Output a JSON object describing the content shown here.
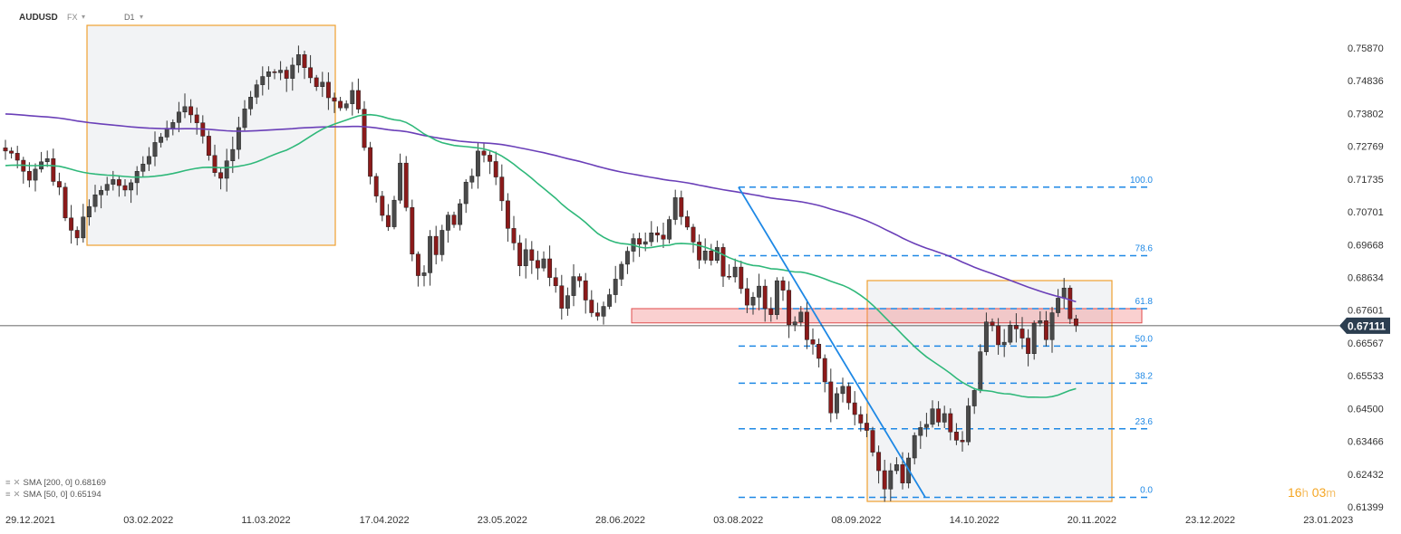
{
  "header": {
    "symbol": "AUDUSD",
    "market": "FX",
    "timeframe": "D1"
  },
  "indicators": [
    {
      "label": "SMA  [200,  0]",
      "value": "0.68169",
      "color": "#6a3fb8"
    },
    {
      "label": "SMA  [50,  0]",
      "value": "0.65194",
      "color": "#2fb87a"
    }
  ],
  "countdown": {
    "hours": "16",
    "hours_unit": "h",
    "minutes": "03",
    "minutes_unit": "m"
  },
  "colors": {
    "up": "#4a4a4a",
    "down": "#8b1a1a",
    "sma200": "#6a3fb8",
    "sma50": "#2fb87a",
    "fib": "#1e88e5",
    "box": "#f0a030",
    "zone": "#e04b4b",
    "price_tag": "#2c3e50"
  },
  "chart_data": {
    "type": "candlestick",
    "symbol": "AUDUSD",
    "timeframe": "D1",
    "x_tick_labels": [
      "29.12.2021",
      "03.02.2022",
      "11.03.2022",
      "17.04.2022",
      "23.05.2022",
      "28.06.2022",
      "03.08.2022",
      "08.09.2022",
      "14.10.2022",
      "20.11.2022",
      "23.12.2022",
      "23.01.2023"
    ],
    "y_tick_labels": [
      "0.75870",
      "0.74836",
      "0.73802",
      "0.72769",
      "0.71735",
      "0.70701",
      "0.69668",
      "0.68634",
      "0.67601",
      "0.66567",
      "0.65533",
      "0.64500",
      "0.63466",
      "0.62432",
      "0.61399"
    ],
    "ylim": [
      0.6133,
      0.762
    ],
    "current_price": "0.67111",
    "closes": [
      0.7262,
      0.7255,
      0.7233,
      0.7198,
      0.717,
      0.7205,
      0.7228,
      0.7238,
      0.7166,
      0.7148,
      0.7051,
      0.7012,
      0.6988,
      0.7054,
      0.7087,
      0.7124,
      0.7138,
      0.7157,
      0.7172,
      0.7153,
      0.7139,
      0.7162,
      0.7198,
      0.7221,
      0.7245,
      0.7289,
      0.7306,
      0.7334,
      0.7352,
      0.7385,
      0.7402,
      0.7376,
      0.7351,
      0.7309,
      0.7248,
      0.7194,
      0.7176,
      0.7231,
      0.7267,
      0.7336,
      0.7395,
      0.7432,
      0.7471,
      0.7497,
      0.7512,
      0.7509,
      0.7517,
      0.7491,
      0.7533,
      0.7566,
      0.7525,
      0.7493,
      0.7465,
      0.7479,
      0.743,
      0.7419,
      0.7398,
      0.7411,
      0.7453,
      0.7394,
      0.7273,
      0.7182,
      0.712,
      0.7059,
      0.7023,
      0.7107,
      0.7224,
      0.7084,
      0.6937,
      0.6869,
      0.6878,
      0.6993,
      0.6935,
      0.7012,
      0.706,
      0.703,
      0.7096,
      0.7164,
      0.7183,
      0.7262,
      0.7249,
      0.7229,
      0.718,
      0.7105,
      0.7018,
      0.6972,
      0.69,
      0.6951,
      0.6917,
      0.6893,
      0.6922,
      0.6863,
      0.6837,
      0.6766,
      0.6806,
      0.6866,
      0.6853,
      0.6792,
      0.6752,
      0.6741,
      0.6772,
      0.6809,
      0.6858,
      0.6905,
      0.6946,
      0.6986,
      0.6968,
      0.6976,
      0.7004,
      0.6997,
      0.6984,
      0.7046,
      0.7115,
      0.7055,
      0.7022,
      0.6975,
      0.6918,
      0.6947,
      0.6917,
      0.6958,
      0.6867,
      0.6865,
      0.6896,
      0.6828,
      0.6776,
      0.6801,
      0.6836,
      0.6765,
      0.6746,
      0.6853,
      0.6823,
      0.6714,
      0.6723,
      0.6754,
      0.6667,
      0.6653,
      0.6608,
      0.6534,
      0.6436,
      0.6497,
      0.652,
      0.6468,
      0.6431,
      0.6404,
      0.6381,
      0.6312,
      0.6254,
      0.6196,
      0.6254,
      0.6273,
      0.6215,
      0.6294,
      0.6365,
      0.639,
      0.64,
      0.6449,
      0.6407,
      0.6434,
      0.6376,
      0.635,
      0.6345,
      0.6458,
      0.6507,
      0.6629,
      0.6723,
      0.6712,
      0.6651,
      0.6659,
      0.6713,
      0.6701,
      0.6672,
      0.6623,
      0.6719,
      0.6727,
      0.6667,
      0.6752,
      0.6798,
      0.683,
      0.6733,
      0.6711
    ],
    "sma200": {
      "name": "SMA  [200,  0]",
      "last": 0.68169
    },
    "sma50": {
      "name": "SMA  [50,  0]",
      "last": 0.65194
    },
    "fibonacci": {
      "levels": [
        {
          "label": "100.0",
          "price": 0.7148
        },
        {
          "label": "78.6",
          "price": 0.6932
        },
        {
          "label": "61.8",
          "price": 0.6765
        },
        {
          "label": "50.0",
          "price": 0.6647
        },
        {
          "label": "38.2",
          "price": 0.653
        },
        {
          "label": "23.6",
          "price": 0.6386
        },
        {
          "label": "0.0",
          "price": 0.617
        }
      ],
      "swing_high": 0.7148,
      "swing_low": 0.617
    },
    "resistance_zone": [
      0.672,
      0.6765
    ],
    "highlight_boxes": [
      {
        "from": "10.01.2022",
        "to": "05.04.2022",
        "low": 0.698,
        "high": 0.7615
      },
      {
        "from": "12.09.2022",
        "to": "25.11.2022",
        "low": 0.617,
        "high": 0.6875
      }
    ],
    "grid": false
  }
}
